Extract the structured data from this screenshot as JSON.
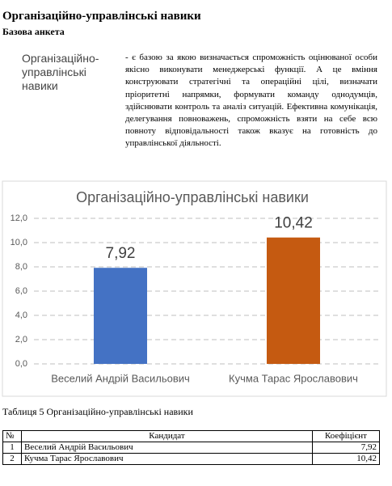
{
  "header": {
    "title": "Організаційно-управлінські навики",
    "subtitle": "Базова анкета"
  },
  "definition": {
    "term": "Організаційно-управлінські навики",
    "text": "- є базою за якою визначається спроможність оцінюваної особи якісно виконувати менеджерські функції. А це вміння конструювати стратегічні та операційні цілі, визначати пріоритетні напрямки, формувати команду однодумців, здійснювати контроль та аналіз ситуацій. Ефективна комунікація, делегування повноважень, спроможність взяти на себе всю повноту відповідальності також вказує на готовність до управлінської діяльності."
  },
  "chart_data": {
    "type": "bar",
    "title": "Організаційно-управлінські навики",
    "categories": [
      "Веселий Андрій Васильович",
      "Кучма Тарас Ярославович"
    ],
    "values": [
      7.92,
      10.42
    ],
    "value_labels": [
      "7,92",
      "10,42"
    ],
    "colors": [
      "#4472c4",
      "#c55a11"
    ],
    "ylim": [
      0,
      12
    ],
    "yticks": [
      {
        "value": 0,
        "label": "0,0"
      },
      {
        "value": 2,
        "label": "2,0"
      },
      {
        "value": 4,
        "label": "4,0"
      },
      {
        "value": 6,
        "label": "6,0"
      },
      {
        "value": 8,
        "label": "8,0"
      },
      {
        "value": 10,
        "label": "10,0"
      },
      {
        "value": 12,
        "label": "12,0"
      }
    ],
    "grid": true
  },
  "table": {
    "caption": "Таблиця 5  Організаційно-управлінські навики",
    "header": [
      "№",
      "Кандидат",
      "Коефіцієнт"
    ],
    "rows": [
      [
        "1",
        "Веселий Андрій Васильович",
        "7,92"
      ],
      [
        "2",
        "Кучма Тарас Ярославович",
        "10,42"
      ]
    ]
  }
}
